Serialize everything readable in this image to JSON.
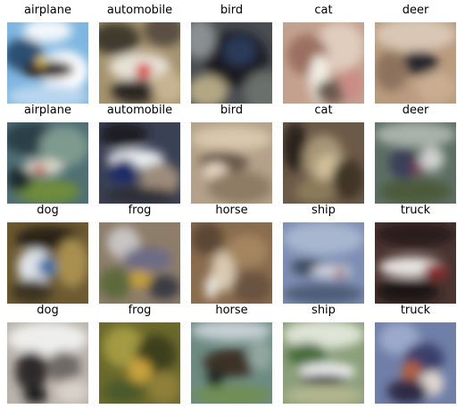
{
  "grid": {
    "rows": [
      [
        {
          "label": "airplane",
          "bg": "#7fb6df",
          "blobs": [
            [
              "#f2f7fb",
              0.5,
              0.1,
              0.6,
              0.3
            ],
            [
              "#2c4f72",
              0.2,
              0.4,
              0.5,
              0.4
            ],
            [
              "#ffffff",
              0.7,
              0.6,
              0.6,
              0.5
            ],
            [
              "#2a1e16",
              0.5,
              0.58,
              0.65,
              0.22
            ],
            [
              "#f1d060",
              0.42,
              0.48,
              0.12,
              0.12
            ],
            [
              "#b8d6ee",
              0.5,
              0.92,
              1.0,
              0.3
            ]
          ]
        },
        {
          "label": "automobile",
          "bg": "#a6936f",
          "blobs": [
            [
              "#3f3a2e",
              0.2,
              0.2,
              0.6,
              0.4
            ],
            [
              "#5a4f42",
              0.8,
              0.1,
              0.5,
              0.4
            ],
            [
              "#e7e2d7",
              0.5,
              0.55,
              0.75,
              0.35
            ],
            [
              "#d43a32",
              0.55,
              0.6,
              0.2,
              0.2
            ],
            [
              "#2b2620",
              0.45,
              0.85,
              0.6,
              0.3
            ],
            [
              "#c7b491",
              0.85,
              0.8,
              0.4,
              0.4
            ]
          ]
        },
        {
          "label": "bird",
          "bg": "#4a4d52",
          "blobs": [
            [
              "#1b1d24",
              0.55,
              0.45,
              0.8,
              0.7
            ],
            [
              "#8a8f90",
              0.1,
              0.2,
              0.4,
              0.5
            ],
            [
              "#2b3a5a",
              0.6,
              0.35,
              0.4,
              0.35
            ],
            [
              "#b3a784",
              0.2,
              0.85,
              0.5,
              0.4
            ],
            [
              "#6b6f6c",
              0.9,
              0.85,
              0.5,
              0.5
            ]
          ]
        },
        {
          "label": "cat",
          "bg": "#c4a18f",
          "blobs": [
            [
              "#e0cdbd",
              0.7,
              0.3,
              0.6,
              0.6
            ],
            [
              "#9b6f62",
              0.3,
              0.4,
              0.5,
              0.5
            ],
            [
              "#f3efe3",
              0.45,
              0.7,
              0.25,
              0.6
            ],
            [
              "#6b5a4f",
              0.6,
              0.85,
              0.4,
              0.3
            ],
            [
              "#c98d86",
              0.85,
              0.75,
              0.3,
              0.4
            ]
          ]
        },
        {
          "label": "deer",
          "bg": "#b99b7e",
          "blobs": [
            [
              "#d9c7b5",
              0.5,
              0.15,
              1.0,
              0.4
            ],
            [
              "#26252d",
              0.55,
              0.5,
              0.45,
              0.3
            ],
            [
              "#8d735e",
              0.2,
              0.6,
              0.4,
              0.5
            ],
            [
              "#c8ad92",
              0.75,
              0.8,
              0.5,
              0.4
            ]
          ]
        }
      ],
      [
        {
          "label": "airplane",
          "bg": "#4f6f74",
          "blobs": [
            [
              "#2a4048",
              0.3,
              0.2,
              0.7,
              0.4
            ],
            [
              "#7e9a8e",
              0.7,
              0.3,
              0.6,
              0.5
            ],
            [
              "#d9d7c8",
              0.45,
              0.55,
              0.5,
              0.2
            ],
            [
              "#c8392e",
              0.4,
              0.58,
              0.15,
              0.12
            ],
            [
              "#6f8c3a",
              0.5,
              0.85,
              0.8,
              0.3
            ],
            [
              "#1f2a2e",
              0.15,
              0.7,
              0.3,
              0.3
            ]
          ]
        },
        {
          "label": "automobile",
          "bg": "#3b4155",
          "blobs": [
            [
              "#1a1a22",
              0.3,
              0.15,
              0.6,
              0.3
            ],
            [
              "#e9ecef",
              0.45,
              0.45,
              0.7,
              0.25
            ],
            [
              "#1b2b6b",
              0.3,
              0.6,
              0.35,
              0.3
            ],
            [
              "#9d8c7a",
              0.75,
              0.7,
              0.5,
              0.4
            ],
            [
              "#2e2e34",
              0.5,
              0.9,
              0.9,
              0.2
            ]
          ]
        },
        {
          "label": "bird",
          "bg": "#b5a189",
          "blobs": [
            [
              "#d8c7ad",
              0.5,
              0.2,
              1.0,
              0.3
            ],
            [
              "#6a5a4b",
              0.4,
              0.5,
              0.6,
              0.3
            ],
            [
              "#e6d8c2",
              0.3,
              0.6,
              0.3,
              0.2
            ],
            [
              "#8f7b65",
              0.6,
              0.8,
              0.8,
              0.4
            ]
          ]
        },
        {
          "label": "cat",
          "bg": "#6b5a48",
          "blobs": [
            [
              "#2a221c",
              0.15,
              0.3,
              0.3,
              0.6
            ],
            [
              "#a79676",
              0.5,
              0.45,
              0.5,
              0.6
            ],
            [
              "#d2c09a",
              0.55,
              0.55,
              0.3,
              0.3
            ],
            [
              "#413528",
              0.8,
              0.7,
              0.4,
              0.5
            ],
            [
              "#8c7a5a",
              0.4,
              0.85,
              0.5,
              0.3
            ]
          ]
        },
        {
          "label": "deer",
          "bg": "#5d6f64",
          "blobs": [
            [
              "#a9b2ac",
              0.5,
              0.15,
              1.0,
              0.3
            ],
            [
              "#3b3f58",
              0.35,
              0.5,
              0.35,
              0.4
            ],
            [
              "#7a3a55",
              0.55,
              0.55,
              0.2,
              0.2
            ],
            [
              "#cfd2cf",
              0.7,
              0.45,
              0.3,
              0.3
            ],
            [
              "#4c5a3b",
              0.5,
              0.85,
              0.9,
              0.3
            ]
          ]
        }
      ],
      [
        {
          "label": "dog",
          "bg": "#6d5a32",
          "blobs": [
            [
              "#2b2418",
              0.5,
              0.2,
              0.8,
              0.3
            ],
            [
              "#dfe4ea",
              0.35,
              0.55,
              0.45,
              0.45
            ],
            [
              "#3d6ea6",
              0.5,
              0.55,
              0.25,
              0.25
            ],
            [
              "#a88f4f",
              0.8,
              0.5,
              0.4,
              0.6
            ],
            [
              "#3e3522",
              0.3,
              0.85,
              0.5,
              0.3
            ]
          ]
        },
        {
          "label": "frog",
          "bg": "#8d7d6a",
          "blobs": [
            [
              "#c8c4c4",
              0.3,
              0.25,
              0.4,
              0.4
            ],
            [
              "#6d6c86",
              0.6,
              0.45,
              0.6,
              0.3
            ],
            [
              "#c9a23b",
              0.5,
              0.7,
              0.3,
              0.2
            ],
            [
              "#5b6b3a",
              0.2,
              0.75,
              0.4,
              0.4
            ],
            [
              "#3a3a42",
              0.8,
              0.8,
              0.4,
              0.3
            ]
          ]
        },
        {
          "label": "horse",
          "bg": "#8a6c4e",
          "blobs": [
            [
              "#5c4634",
              0.2,
              0.2,
              0.4,
              0.4
            ],
            [
              "#d8c9b2",
              0.4,
              0.6,
              0.3,
              0.5
            ],
            [
              "#a58560",
              0.7,
              0.35,
              0.5,
              0.4
            ],
            [
              "#e9e5dc",
              0.25,
              0.8,
              0.15,
              0.3
            ],
            [
              "#6b5340",
              0.75,
              0.8,
              0.5,
              0.4
            ]
          ]
        },
        {
          "label": "ship",
          "bg": "#7e8fb4",
          "blobs": [
            [
              "#a8b6cf",
              0.5,
              0.2,
              1.0,
              0.4
            ],
            [
              "#3d4a5c",
              0.3,
              0.55,
              0.4,
              0.2
            ],
            [
              "#d4d6dc",
              0.6,
              0.6,
              0.5,
              0.15
            ],
            [
              "#b5453c",
              0.7,
              0.62,
              0.12,
              0.1
            ],
            [
              "#4f5d77",
              0.5,
              0.88,
              1.0,
              0.25
            ]
          ]
        },
        {
          "label": "truck",
          "bg": "#4a3530",
          "blobs": [
            [
              "#2b1f1c",
              0.5,
              0.15,
              1.0,
              0.3
            ],
            [
              "#e7e3e1",
              0.45,
              0.55,
              0.8,
              0.25
            ],
            [
              "#8a2b2a",
              0.75,
              0.6,
              0.3,
              0.2
            ],
            [
              "#1c1817",
              0.4,
              0.85,
              0.8,
              0.3
            ]
          ]
        }
      ],
      [
        {
          "label": "dog",
          "bg": "#b9b3ab",
          "blobs": [
            [
              "#eeeeec",
              0.5,
              0.2,
              1.0,
              0.4
            ],
            [
              "#2d2a2a",
              0.3,
              0.6,
              0.4,
              0.5
            ],
            [
              "#6f6a66",
              0.7,
              0.55,
              0.4,
              0.4
            ],
            [
              "#d8d2c9",
              0.8,
              0.85,
              0.4,
              0.3
            ],
            [
              "#1d1b1c",
              0.35,
              0.9,
              0.3,
              0.2
            ]
          ]
        },
        {
          "label": "frog",
          "bg": "#6b6a2c",
          "blobs": [
            [
              "#a39a43",
              0.3,
              0.3,
              0.5,
              0.5
            ],
            [
              "#3e3f1c",
              0.7,
              0.4,
              0.5,
              0.5
            ],
            [
              "#c7a23d",
              0.5,
              0.6,
              0.3,
              0.3
            ],
            [
              "#4b5a2a",
              0.3,
              0.85,
              0.5,
              0.3
            ],
            [
              "#8f7f3a",
              0.8,
              0.8,
              0.4,
              0.4
            ]
          ]
        },
        {
          "label": "horse",
          "bg": "#6d8b82",
          "blobs": [
            [
              "#c5cfd3",
              0.5,
              0.1,
              1.0,
              0.25
            ],
            [
              "#3d3028",
              0.5,
              0.5,
              0.7,
              0.35
            ],
            [
              "#1f2a25",
              0.3,
              0.7,
              0.2,
              0.3
            ],
            [
              "#6f8f55",
              0.5,
              0.9,
              1.0,
              0.25
            ],
            [
              "#91a7a0",
              0.85,
              0.4,
              0.3,
              0.4
            ]
          ]
        },
        {
          "label": "ship",
          "bg": "#8a9f7a",
          "blobs": [
            [
              "#dfe4d6",
              0.5,
              0.15,
              1.0,
              0.35
            ],
            [
              "#4a6e3c",
              0.3,
              0.4,
              0.5,
              0.3
            ],
            [
              "#f1f1f2",
              0.55,
              0.6,
              0.7,
              0.2
            ],
            [
              "#2d2f3a",
              0.5,
              0.7,
              0.6,
              0.12
            ],
            [
              "#b2b68e",
              0.5,
              0.9,
              1.0,
              0.25
            ]
          ]
        },
        {
          "label": "truck",
          "bg": "#6f7fa8",
          "blobs": [
            [
              "#9ca9cb",
              0.3,
              0.2,
              0.5,
              0.4
            ],
            [
              "#3a3f6a",
              0.6,
              0.45,
              0.5,
              0.4
            ],
            [
              "#b0603f",
              0.45,
              0.6,
              0.25,
              0.25
            ],
            [
              "#e0d8d0",
              0.7,
              0.75,
              0.3,
              0.3
            ],
            [
              "#2f2c44",
              0.4,
              0.85,
              0.5,
              0.3
            ]
          ]
        }
      ]
    ]
  }
}
